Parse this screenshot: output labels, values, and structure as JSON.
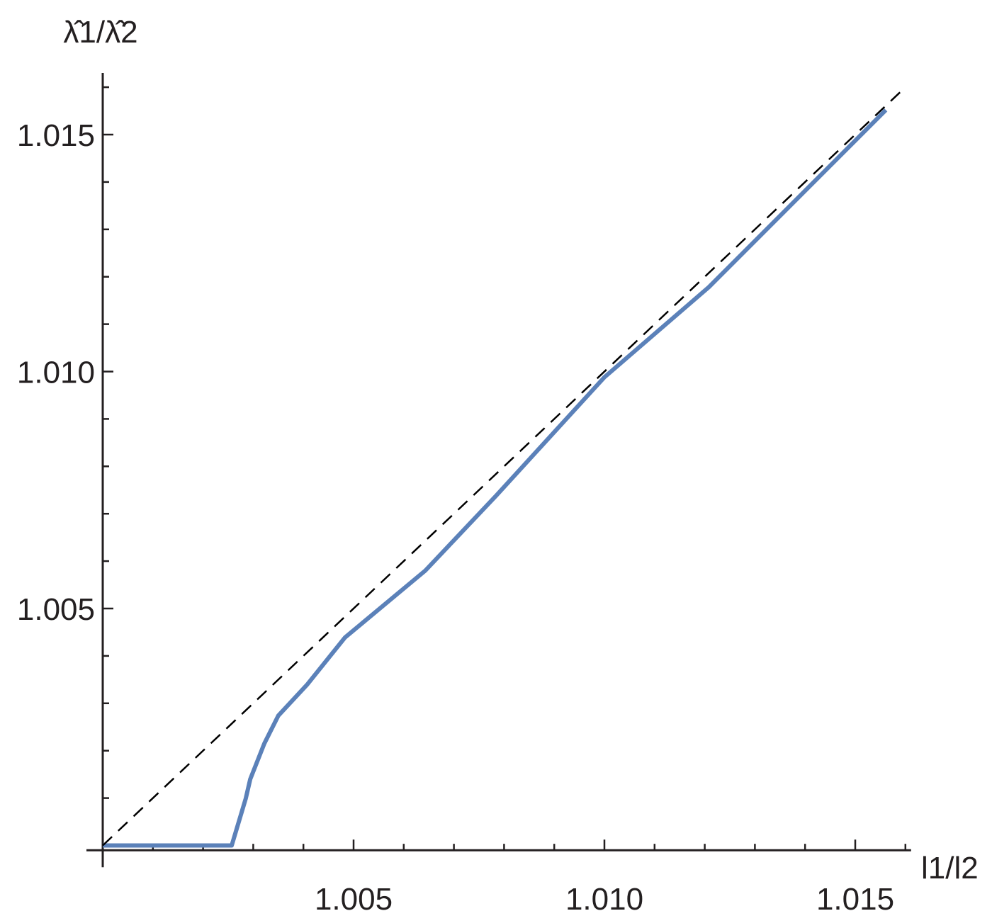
{
  "chart_data": {
    "type": "line",
    "title": "",
    "xlabel": "l1/l2",
    "ylabel": "λ̂1/λ̂2",
    "xlim": [
      1.0,
      1.016
    ],
    "ylim": [
      0.9999,
      1.0163
    ],
    "grid": false,
    "x_major_ticks": [
      1.005,
      1.01,
      1.015
    ],
    "x_tick_labels": [
      "1.005",
      "1.010",
      "1.015"
    ],
    "y_major_ticks": [
      1.005,
      1.01,
      1.015
    ],
    "y_tick_labels": [
      "1.005",
      "1.010",
      "1.015"
    ],
    "minor_tick_step": 0.001,
    "series": [
      {
        "style": "solid",
        "color": "#5b81b9",
        "x": [
          1.0,
          1.00257,
          1.00285,
          1.00294,
          1.00322,
          1.0035,
          1.00407,
          1.00483,
          1.00643,
          1.00784,
          1.01,
          1.01208,
          1.01561
        ],
        "y": [
          1.0,
          1.0,
          1.00099,
          1.0014,
          1.00215,
          1.00274,
          1.00339,
          1.00439,
          1.0058,
          1.00738,
          1.00988,
          1.01178,
          1.01552
        ]
      },
      {
        "style": "dashed",
        "color": "#000000",
        "x": [
          1.0,
          1.016
        ],
        "y": [
          1.0,
          1.016
        ]
      }
    ]
  }
}
